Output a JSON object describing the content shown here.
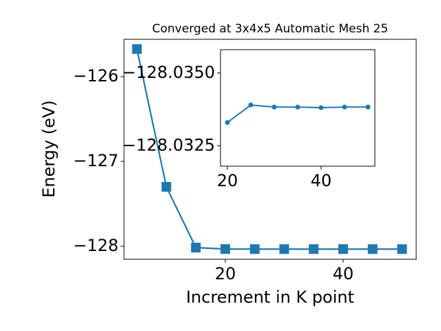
{
  "chart_data": [
    {
      "type": "line",
      "title": "Converged at 3x4x5 Automatic Mesh 25",
      "x_label": "Increment in K point",
      "y_label": "Energy (eV)",
      "x": [
        5,
        10,
        15,
        20,
        25,
        30,
        35,
        40,
        45,
        50
      ],
      "series": [
        {
          "name": "Energy",
          "color": "#1f77b4",
          "marker": "square",
          "values": [
            -125.675,
            -127.3,
            -128.016,
            -128.0333,
            -128.0339,
            -128.03383,
            -128.03383,
            -128.03381,
            -128.03383,
            -128.03383
          ]
        }
      ],
      "xlim": [
        2.81,
        52.4
      ],
      "xticks": [
        20,
        40
      ],
      "ylim": [
        -128.154,
        -125.56
      ],
      "yticks": [
        {
          "value": -128,
          "label": "−128"
        },
        {
          "value": -127,
          "label": "−127"
        },
        {
          "value": -126,
          "label": "−126"
        }
      ]
    },
    {
      "type": "line",
      "x": [
        20,
        25,
        30,
        35,
        40,
        45,
        50
      ],
      "series": [
        {
          "name": "Energy",
          "color": "#1f77b4",
          "marker": "circle",
          "values": [
            -128.0333,
            -128.0339,
            -128.03383,
            -128.03383,
            -128.03381,
            -128.03383,
            -128.03383
          ]
        }
      ],
      "xlim": [
        18.53,
        51.47
      ],
      "xticks": [
        20,
        40
      ],
      "ylim": [
        -128.0318,
        -128.0358
      ],
      "yticks": [
        {
          "value": -128.0325,
          "label": "−128.0325"
        },
        {
          "value": -128.035,
          "label": "−128.0350"
        }
      ]
    }
  ]
}
